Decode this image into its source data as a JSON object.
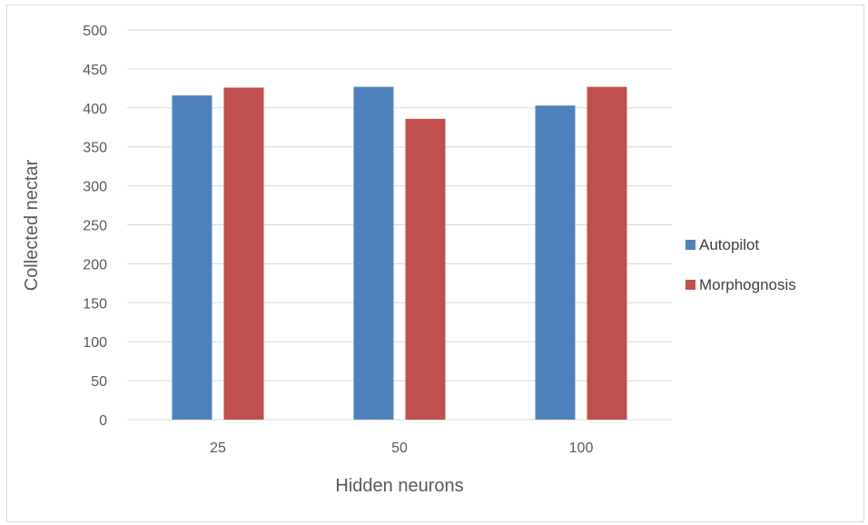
{
  "chart_data": {
    "type": "bar",
    "title": "",
    "xlabel": "Hidden neurons",
    "ylabel": "Collected nectar",
    "categories": [
      "25",
      "50",
      "100"
    ],
    "ylim": [
      0,
      500
    ],
    "yticks": [
      0,
      50,
      100,
      150,
      200,
      250,
      300,
      350,
      400,
      450,
      500
    ],
    "grid": true,
    "legend_position": "right",
    "series": [
      {
        "name": "Autopilot",
        "color": "#4f81bd",
        "values": [
          416,
          427,
          403
        ]
      },
      {
        "name": "Morphognosis",
        "color": "#c0504d",
        "values": [
          426,
          386,
          427
        ]
      }
    ]
  }
}
